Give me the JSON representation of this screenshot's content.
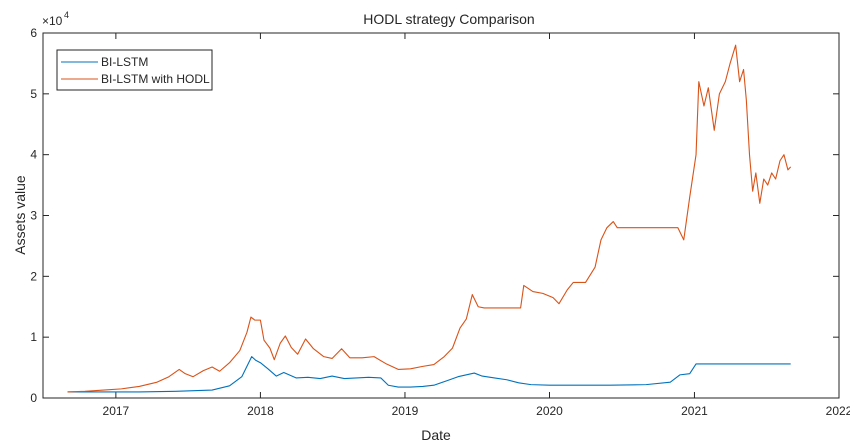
{
  "chart_data": {
    "type": "line",
    "title": "HODL strategy Comparison",
    "xlabel": "Date",
    "ylabel": "Assets value",
    "y_exponent_label": "×10",
    "y_exponent_power": "4",
    "xlim": [
      "2016-07-01",
      "2022-01-01"
    ],
    "ylim": [
      0,
      60000
    ],
    "x_ticks": [
      "2017",
      "2018",
      "2019",
      "2020",
      "2021",
      "2022"
    ],
    "y_ticks": [
      "0",
      "1",
      "2",
      "3",
      "4",
      "5",
      "6"
    ],
    "legend": {
      "placement": "top-left"
    },
    "grid": false,
    "series": [
      {
        "name": "BI-LSTM",
        "color": "#0072BD",
        "points": [
          [
            "2016-09-01",
            1000
          ],
          [
            "2016-12-01",
            1000
          ],
          [
            "2017-03-01",
            1000
          ],
          [
            "2017-06-01",
            1100
          ],
          [
            "2017-09-01",
            1300
          ],
          [
            "2017-10-15",
            2000
          ],
          [
            "2017-11-15",
            3500
          ],
          [
            "2017-12-10",
            6800
          ],
          [
            "2017-12-20",
            6200
          ],
          [
            "2018-01-01",
            5800
          ],
          [
            "2018-01-20",
            4800
          ],
          [
            "2018-02-10",
            3600
          ],
          [
            "2018-03-01",
            4200
          ],
          [
            "2018-04-01",
            3300
          ],
          [
            "2018-05-01",
            3400
          ],
          [
            "2018-06-01",
            3200
          ],
          [
            "2018-07-01",
            3600
          ],
          [
            "2018-08-01",
            3200
          ],
          [
            "2018-09-01",
            3300
          ],
          [
            "2018-10-01",
            3400
          ],
          [
            "2018-11-01",
            3300
          ],
          [
            "2018-11-20",
            2100
          ],
          [
            "2018-12-15",
            1800
          ],
          [
            "2019-01-15",
            1800
          ],
          [
            "2019-02-15",
            1900
          ],
          [
            "2019-03-15",
            2100
          ],
          [
            "2019-04-15",
            2800
          ],
          [
            "2019-05-15",
            3500
          ],
          [
            "2019-06-25",
            4100
          ],
          [
            "2019-07-15",
            3600
          ],
          [
            "2019-08-15",
            3300
          ],
          [
            "2019-09-15",
            3000
          ],
          [
            "2019-10-15",
            2500
          ],
          [
            "2019-11-15",
            2200
          ],
          [
            "2020-01-01",
            2100
          ],
          [
            "2020-03-01",
            2100
          ],
          [
            "2020-06-01",
            2100
          ],
          [
            "2020-09-01",
            2200
          ],
          [
            "2020-11-01",
            2600
          ],
          [
            "2020-11-25",
            3800
          ],
          [
            "2020-12-20",
            4000
          ],
          [
            "2021-01-05",
            5600
          ],
          [
            "2021-04-01",
            5600
          ],
          [
            "2021-06-01",
            5600
          ],
          [
            "2021-09-01",
            5600
          ]
        ]
      },
      {
        "name": "BI-LSTM with HODL",
        "color": "#D95319",
        "points": [
          [
            "2016-09-01",
            1000
          ],
          [
            "2016-10-15",
            1100
          ],
          [
            "2016-12-01",
            1300
          ],
          [
            "2017-01-15",
            1500
          ],
          [
            "2017-03-01",
            1900
          ],
          [
            "2017-04-15",
            2600
          ],
          [
            "2017-05-15",
            3500
          ],
          [
            "2017-06-10",
            4700
          ],
          [
            "2017-06-25",
            4000
          ],
          [
            "2017-07-15",
            3500
          ],
          [
            "2017-08-10",
            4500
          ],
          [
            "2017-09-01",
            5100
          ],
          [
            "2017-09-20",
            4400
          ],
          [
            "2017-10-15",
            5800
          ],
          [
            "2017-11-10",
            7800
          ],
          [
            "2017-11-28",
            10800
          ],
          [
            "2017-12-08",
            13300
          ],
          [
            "2017-12-18",
            12800
          ],
          [
            "2018-01-01",
            12800
          ],
          [
            "2018-01-10",
            9500
          ],
          [
            "2018-01-25",
            8200
          ],
          [
            "2018-02-05",
            6300
          ],
          [
            "2018-02-20",
            9000
          ],
          [
            "2018-03-05",
            10200
          ],
          [
            "2018-03-20",
            8300
          ],
          [
            "2018-04-05",
            7200
          ],
          [
            "2018-04-25",
            9700
          ],
          [
            "2018-05-15",
            8100
          ],
          [
            "2018-06-10",
            6800
          ],
          [
            "2018-07-01",
            6500
          ],
          [
            "2018-07-25",
            8100
          ],
          [
            "2018-08-15",
            6600
          ],
          [
            "2018-09-15",
            6600
          ],
          [
            "2018-10-15",
            6800
          ],
          [
            "2018-11-15",
            5600
          ],
          [
            "2018-12-15",
            4700
          ],
          [
            "2019-01-15",
            4800
          ],
          [
            "2019-02-15",
            5200
          ],
          [
            "2019-03-15",
            5500
          ],
          [
            "2019-04-10",
            6800
          ],
          [
            "2019-05-01",
            8200
          ],
          [
            "2019-05-20",
            11500
          ],
          [
            "2019-06-05",
            13000
          ],
          [
            "2019-06-20",
            17000
          ],
          [
            "2019-07-05",
            15000
          ],
          [
            "2019-07-20",
            14800
          ],
          [
            "2019-08-20",
            14800
          ],
          [
            "2019-09-20",
            14800
          ],
          [
            "2019-10-20",
            14800
          ],
          [
            "2019-10-28",
            18500
          ],
          [
            "2019-11-20",
            17500
          ],
          [
            "2019-12-15",
            17200
          ],
          [
            "2020-01-10",
            16500
          ],
          [
            "2020-01-25",
            15500
          ],
          [
            "2020-02-15",
            17800
          ],
          [
            "2020-03-01",
            19000
          ],
          [
            "2020-04-01",
            19000
          ],
          [
            "2020-04-25",
            21500
          ],
          [
            "2020-05-10",
            26000
          ],
          [
            "2020-05-25",
            28000
          ],
          [
            "2020-06-10",
            29000
          ],
          [
            "2020-06-20",
            28000
          ],
          [
            "2020-08-01",
            28000
          ],
          [
            "2020-10-01",
            28000
          ],
          [
            "2020-11-20",
            28000
          ],
          [
            "2020-12-05",
            26000
          ],
          [
            "2020-12-20",
            33000
          ],
          [
            "2021-01-05",
            40000
          ],
          [
            "2021-01-12",
            52000
          ],
          [
            "2021-01-25",
            48000
          ],
          [
            "2021-02-05",
            51000
          ],
          [
            "2021-02-20",
            44000
          ],
          [
            "2021-03-05",
            50000
          ],
          [
            "2021-03-20",
            52000
          ],
          [
            "2021-04-01",
            55000
          ],
          [
            "2021-04-15",
            58000
          ],
          [
            "2021-04-25",
            52000
          ],
          [
            "2021-05-05",
            54000
          ],
          [
            "2021-05-12",
            49000
          ],
          [
            "2021-05-20",
            40000
          ],
          [
            "2021-05-28",
            34000
          ],
          [
            "2021-06-05",
            37000
          ],
          [
            "2021-06-15",
            32000
          ],
          [
            "2021-06-25",
            36000
          ],
          [
            "2021-07-05",
            35000
          ],
          [
            "2021-07-15",
            37000
          ],
          [
            "2021-07-25",
            36000
          ],
          [
            "2021-08-05",
            39000
          ],
          [
            "2021-08-15",
            40000
          ],
          [
            "2021-08-25",
            37500
          ],
          [
            "2021-09-01",
            38000
          ]
        ]
      }
    ]
  }
}
